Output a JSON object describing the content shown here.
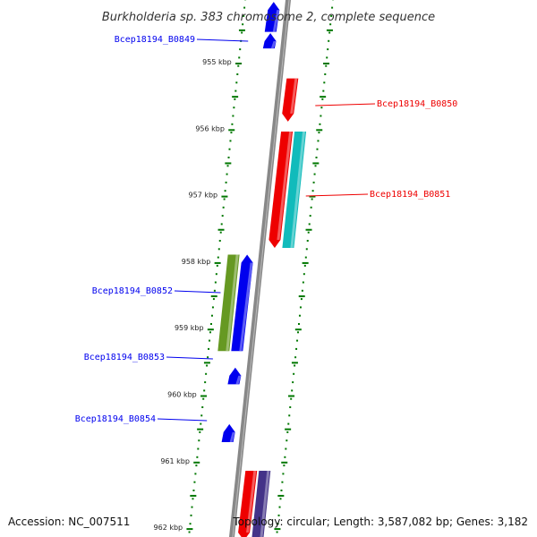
{
  "title": "Burkholderia sp. 383 chromosome 2, complete sequence",
  "footer": {
    "accession": "Accession: NC_007511",
    "topology": "Topology: circular; Length: 3,587,082 bp; Genes: 3,182"
  },
  "colors": {
    "forward_gene": "#0000ee",
    "reverse_gene": "#ee0000",
    "backbone": "#888888",
    "tick": "#007700",
    "teal_feature": "#11bbbb",
    "olive_feature": "#669922",
    "purple_feature": "#443388"
  },
  "scale": {
    "unit": "kbp",
    "ticks": [
      {
        "kbp": 955,
        "label": "955 kbp"
      },
      {
        "kbp": 956,
        "label": "956 kbp"
      },
      {
        "kbp": 957,
        "label": "957 kbp"
      },
      {
        "kbp": 958,
        "label": "958 kbp"
      },
      {
        "kbp": 959,
        "label": "959 kbp"
      },
      {
        "kbp": 960,
        "label": "960 kbp"
      },
      {
        "kbp": 961,
        "label": "961 kbp"
      },
      {
        "kbp": 962,
        "label": "962 kbp"
      }
    ]
  },
  "genes": [
    {
      "id": "g0849",
      "label": "Bcep18194_B0849",
      "strand": "forward",
      "start_kbp": 954.1,
      "end_kbp": 954.55,
      "color": "#0000ee",
      "labeled": false
    },
    {
      "id": "g0849b",
      "label": "Bcep18194_B0849",
      "strand": "forward",
      "start_kbp": 954.57,
      "end_kbp": 954.8,
      "color": "#0000ee",
      "labeled": true
    },
    {
      "id": "g0850",
      "label": "Bcep18194_B0850",
      "strand": "reverse",
      "start_kbp": 955.25,
      "end_kbp": 955.9,
      "color": "#ee0000",
      "labeled": true
    },
    {
      "id": "g0851",
      "label": "Bcep18194_B0851",
      "strand": "reverse",
      "start_kbp": 956.05,
      "end_kbp": 957.8,
      "color": "#ee0000",
      "labeled": true
    },
    {
      "id": "f0851",
      "label": "",
      "strand": "reverse-track2",
      "start_kbp": 956.05,
      "end_kbp": 957.8,
      "color": "#11bbbb",
      "labeled": false
    },
    {
      "id": "f0852",
      "label": "",
      "strand": "forward-track2",
      "start_kbp": 957.9,
      "end_kbp": 959.35,
      "color": "#669922",
      "labeled": false
    },
    {
      "id": "g0852",
      "label": "Bcep18194_B0852",
      "strand": "forward",
      "start_kbp": 957.9,
      "end_kbp": 959.35,
      "color": "#0000ee",
      "labeled": true
    },
    {
      "id": "g0853",
      "label": "Bcep18194_B0853",
      "strand": "forward",
      "start_kbp": 959.6,
      "end_kbp": 959.85,
      "color": "#0000ee",
      "labeled": true
    },
    {
      "id": "g0854",
      "label": "Bcep18194_B0854",
      "strand": "forward",
      "start_kbp": 960.45,
      "end_kbp": 960.72,
      "color": "#0000ee",
      "labeled": true
    },
    {
      "id": "g0855",
      "label": "",
      "strand": "reverse",
      "start_kbp": 961.15,
      "end_kbp": 962.2,
      "color": "#ee0000",
      "labeled": false
    },
    {
      "id": "f0855",
      "label": "",
      "strand": "reverse-track2",
      "start_kbp": 961.15,
      "end_kbp": 962.2,
      "color": "#443388",
      "labeled": false
    }
  ]
}
